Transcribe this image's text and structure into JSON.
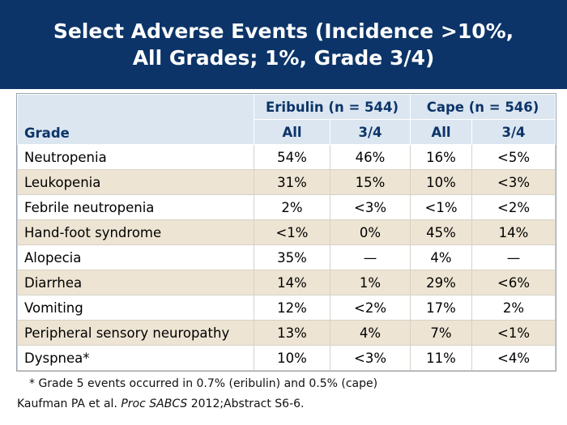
{
  "slide": {
    "title_line1": "Select Adverse Events (Incidence >10%,",
    "title_line2": "All Grades; 1%, Grade 3/4)"
  },
  "table": {
    "grade_header": "Grade",
    "groups": [
      "Eribulin (n = 544)",
      "Cape (n = 546)"
    ],
    "subheaders": [
      "All",
      "3/4",
      "All",
      "3/4"
    ],
    "rows": [
      {
        "event": "Neutropenia",
        "values": [
          "54%",
          "46%",
          "16%",
          "<5%"
        ]
      },
      {
        "event": "Leukopenia",
        "values": [
          "31%",
          "15%",
          "10%",
          "<3%"
        ]
      },
      {
        "event": "Febrile neutropenia",
        "values": [
          "2%",
          "<3%",
          "<1%",
          "<2%"
        ]
      },
      {
        "event": "Hand-foot syndrome",
        "values": [
          "<1%",
          "0%",
          "45%",
          "14%"
        ]
      },
      {
        "event": "Alopecia",
        "values": [
          "35%",
          "—",
          "4%",
          "—"
        ]
      },
      {
        "event": "Diarrhea",
        "values": [
          "14%",
          "1%",
          "29%",
          "<6%"
        ]
      },
      {
        "event": "Vomiting",
        "values": [
          "12%",
          "<2%",
          "17%",
          "2%"
        ]
      },
      {
        "event": "Peripheral sensory neuropathy",
        "values": [
          "13%",
          "4%",
          "7%",
          "<1%"
        ]
      },
      {
        "event": "Dyspnea*",
        "values": [
          "10%",
          "<3%",
          "11%",
          "<4%"
        ]
      }
    ]
  },
  "footnote": "* Grade 5 events occurred in 0.7% (eribulin) and 0.5% (cape)",
  "reference": {
    "prefix": "Kaufman PA et al. ",
    "journal": "Proc SABCS",
    "suffix": " 2012;Abstract S6-6."
  },
  "colors": {
    "title_background": "#0c3468",
    "header_background": "#dbe6f1",
    "band_background": "#ede4d3"
  }
}
